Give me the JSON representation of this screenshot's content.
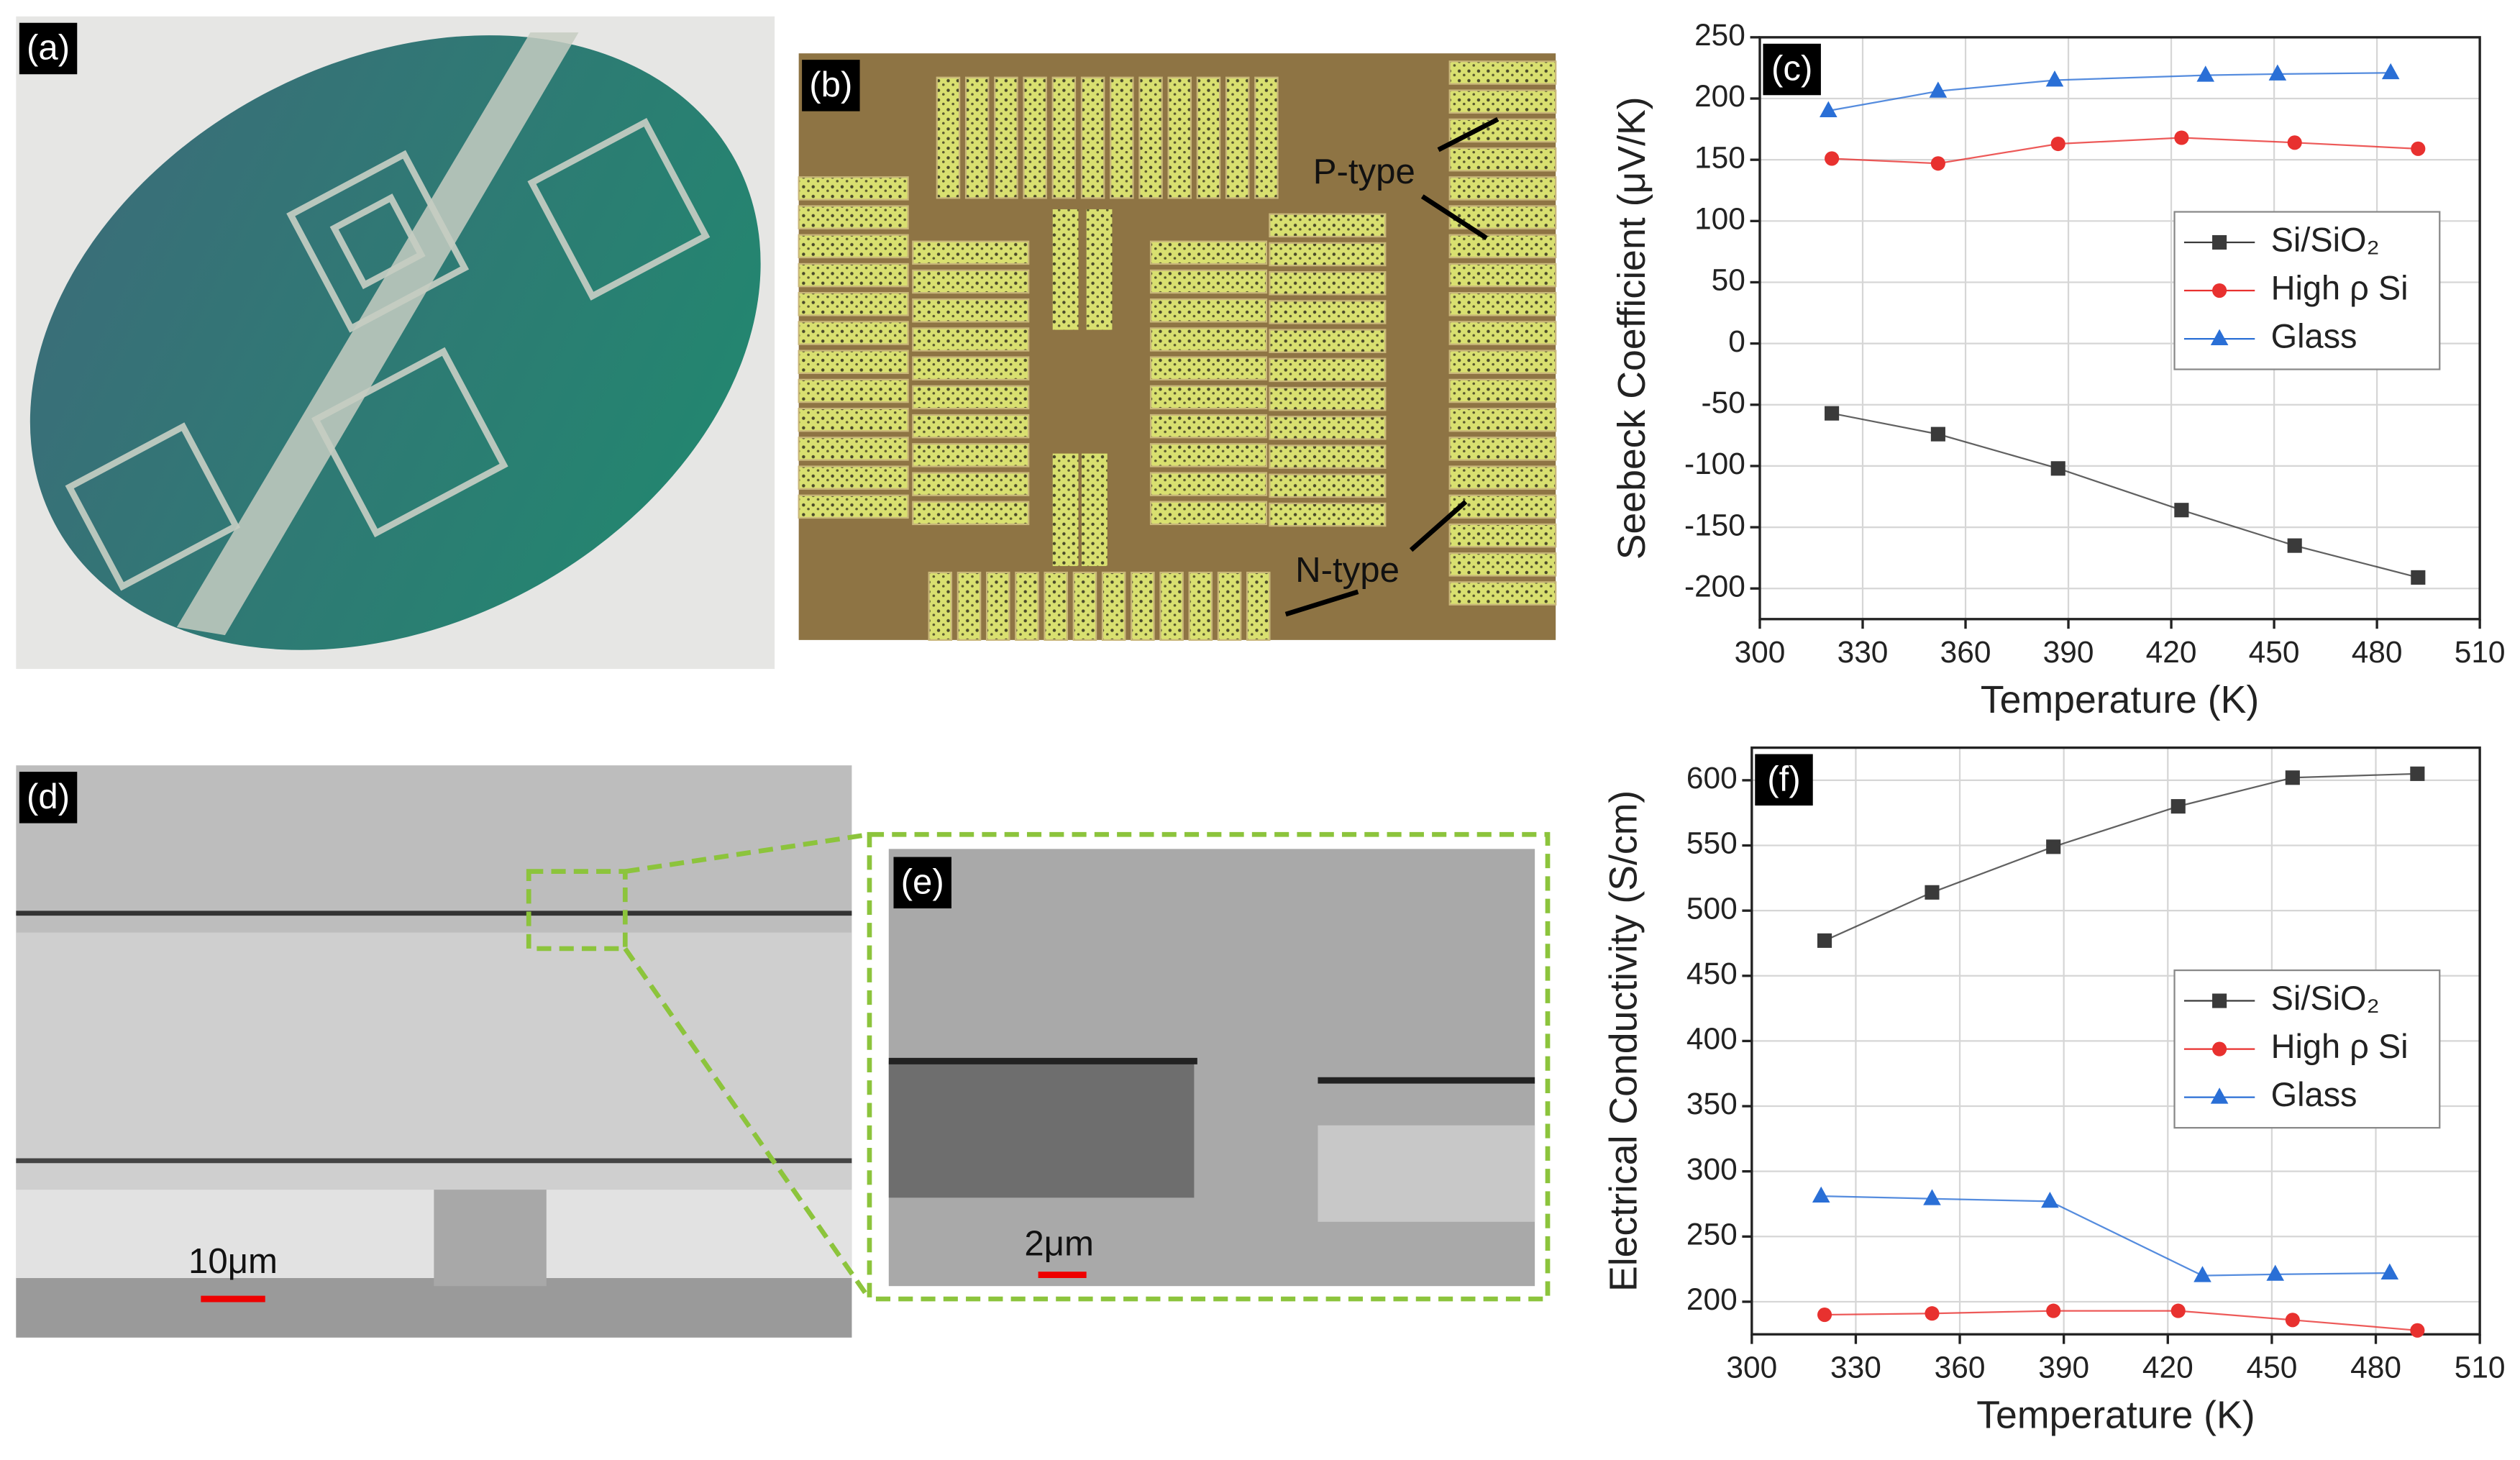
{
  "panels": {
    "a": {
      "label": "(a)"
    },
    "b": {
      "label": "(b)",
      "annotations": [
        "P-type",
        "N-type"
      ]
    },
    "d": {
      "label": "(d)",
      "scale_bar": "10μm"
    },
    "e": {
      "label": "(e)",
      "scale_bar": "2μm"
    }
  },
  "chart_data": [
    {
      "type": "line",
      "panel_label": "(c)",
      "x_label": "Temperature (K)",
      "y_label": "Seebeck Coefficient (μV/K)",
      "xlim": [
        300,
        510
      ],
      "xticks": [
        300,
        330,
        360,
        390,
        420,
        450,
        480,
        510
      ],
      "ylim": [
        -225,
        250
      ],
      "yticks": [
        -200,
        -150,
        -100,
        -50,
        0,
        50,
        100,
        150,
        200,
        250
      ],
      "grid": true,
      "legend": "upper right",
      "series": [
        {
          "name": "Si/SiO₂",
          "color": "#3a3a3a",
          "marker": "square",
          "x": [
            321,
            352,
            387,
            423,
            456,
            492
          ],
          "values": [
            -57,
            -74,
            -102,
            -136,
            -165,
            -191
          ]
        },
        {
          "name": "High ρ Si",
          "color": "#e8312f",
          "marker": "circle",
          "x": [
            321,
            352,
            387,
            423,
            456,
            492
          ],
          "values": [
            151,
            147,
            163,
            168,
            164,
            159
          ]
        },
        {
          "name": "Glass",
          "color": "#2a6fd6",
          "marker": "triangle",
          "x": [
            320,
            352,
            386,
            430,
            451,
            484
          ],
          "values": [
            190,
            206,
            215,
            219,
            220,
            221
          ]
        }
      ]
    },
    {
      "type": "line",
      "panel_label": "(f)",
      "x_label": "Temperature (K)",
      "y_label": "Electrical Conductivity (S/cm)",
      "xlim": [
        300,
        510
      ],
      "xticks": [
        300,
        330,
        360,
        390,
        420,
        450,
        480,
        510
      ],
      "ylim": [
        175,
        625
      ],
      "yticks": [
        200,
        250,
        300,
        350,
        400,
        450,
        500,
        550,
        600
      ],
      "grid": true,
      "legend": "center right",
      "series": [
        {
          "name": "Si/SiO₂",
          "color": "#3a3a3a",
          "marker": "square",
          "x": [
            321,
            352,
            387,
            423,
            456,
            492
          ],
          "values": [
            477,
            514,
            549,
            580,
            602,
            605
          ]
        },
        {
          "name": "High ρ Si",
          "color": "#e8312f",
          "marker": "circle",
          "x": [
            321,
            352,
            387,
            423,
            456,
            492
          ],
          "values": [
            190,
            191,
            193,
            193,
            186,
            178
          ]
        },
        {
          "name": "Glass",
          "color": "#2a6fd6",
          "marker": "triangle",
          "x": [
            320,
            352,
            386,
            430,
            451,
            484
          ],
          "values": [
            281,
            279,
            277,
            220,
            221,
            222
          ]
        }
      ]
    }
  ]
}
